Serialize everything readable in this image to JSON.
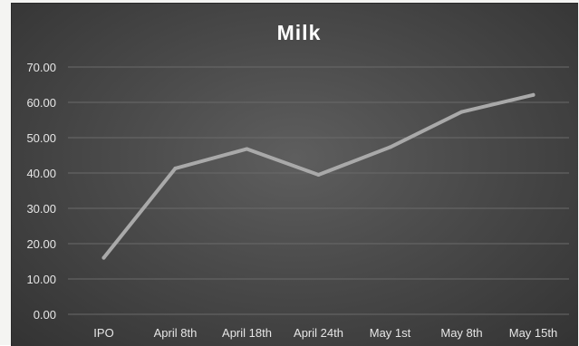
{
  "chart_data": {
    "type": "line",
    "title": "Milk",
    "categories": [
      "IPO",
      "April 8th",
      "April 18th",
      "April 24th",
      "May 1st",
      "May 8th",
      "May 15th"
    ],
    "series": [
      {
        "values": [
          16,
          41.3,
          46.8,
          39.5,
          47.3,
          57.3,
          62.1
        ]
      }
    ],
    "y_ticks": [
      "0.00",
      "10.00",
      "20.00",
      "30.00",
      "40.00",
      "50.00",
      "60.00",
      "70.00"
    ],
    "ylim": [
      0,
      70
    ],
    "grid": true,
    "legend": "none",
    "colors": {
      "series": "#a9a9a9",
      "grid": "#6a6a6a",
      "text": "#e6e6e6",
      "title": "#ffffff"
    }
  }
}
